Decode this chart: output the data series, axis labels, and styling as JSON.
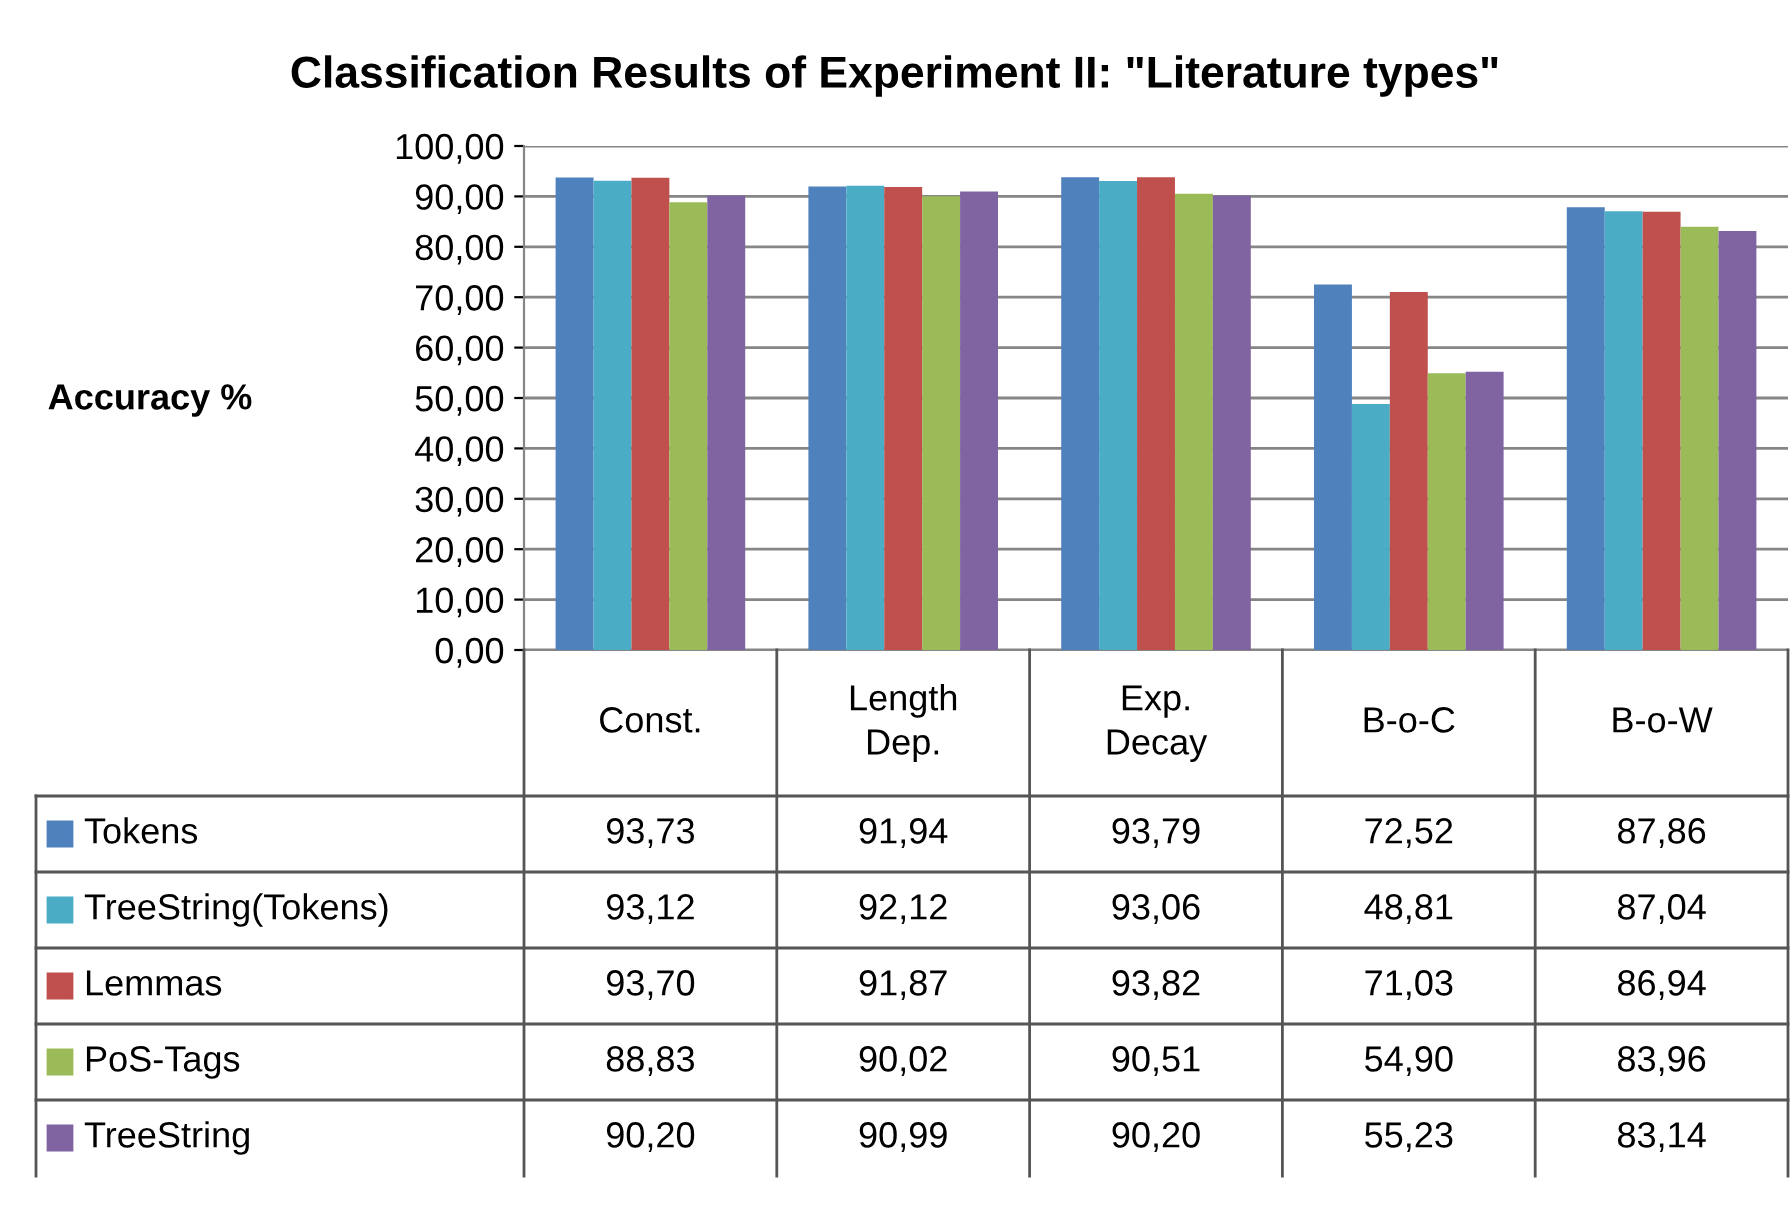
{
  "chart_data": {
    "type": "bar",
    "title": "Classification Results of Experiment II: \"Literature types\"",
    "ylabel": "Accuracy %",
    "categories": [
      "Const.",
      "Length\nDep.",
      "Exp.\nDecay",
      "B-o-C",
      "B-o-W"
    ],
    "series": [
      {
        "name": "Tokens",
        "color": "#4f81bd",
        "values": [
          93.73,
          91.94,
          93.79,
          72.52,
          87.86
        ],
        "value_labels": [
          "93,73",
          "91,94",
          "93,79",
          "72,52",
          "87,86"
        ]
      },
      {
        "name": "TreeString(Tokens)",
        "color": "#4bacc6",
        "values": [
          93.12,
          92.12,
          93.06,
          48.81,
          87.04
        ],
        "value_labels": [
          "93,12",
          "92,12",
          "93,06",
          "48,81",
          "87,04"
        ]
      },
      {
        "name": "Lemmas",
        "color": "#c0504d",
        "values": [
          93.7,
          91.87,
          93.82,
          71.03,
          86.94
        ],
        "value_labels": [
          "93,70",
          "91,87",
          "93,82",
          "71,03",
          "86,94"
        ]
      },
      {
        "name": "PoS-Tags",
        "color": "#9bbb59",
        "values": [
          88.83,
          90.02,
          90.51,
          54.9,
          83.96
        ],
        "value_labels": [
          "88,83",
          "90,02",
          "90,51",
          "54,90",
          "83,96"
        ]
      },
      {
        "name": "TreeString",
        "color": "#8064a2",
        "values": [
          90.2,
          90.99,
          90.2,
          55.23,
          83.14
        ],
        "value_labels": [
          "90,20",
          "90,99",
          "90,20",
          "55,23",
          "83,14"
        ]
      }
    ],
    "ylim": [
      0,
      100
    ],
    "yticks": [
      {
        "value": 0,
        "label": "0,00"
      },
      {
        "value": 10,
        "label": "10,00"
      },
      {
        "value": 20,
        "label": "20,00"
      },
      {
        "value": 30,
        "label": "30,00"
      },
      {
        "value": 40,
        "label": "40,00"
      },
      {
        "value": 50,
        "label": "50,00"
      },
      {
        "value": 60,
        "label": "60,00"
      },
      {
        "value": 70,
        "label": "70,00"
      },
      {
        "value": 80,
        "label": "80,00"
      },
      {
        "value": 90,
        "label": "90,00"
      },
      {
        "value": 100,
        "label": "100,00"
      }
    ],
    "grid": "y",
    "legend": "left"
  }
}
